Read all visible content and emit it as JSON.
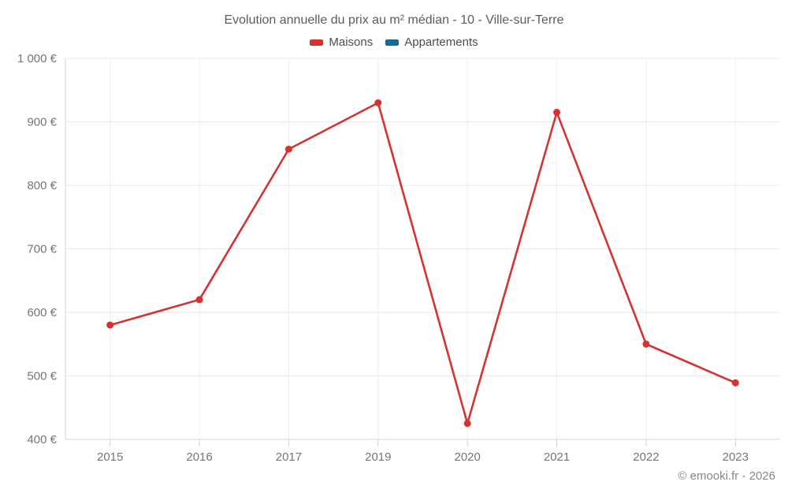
{
  "title": "Evolution annuelle du prix au m² médian - 10 - Ville-sur-Terre",
  "footer": "© emooki.fr - 2026",
  "legend": {
    "items": [
      {
        "label": "Maisons",
        "color": "#d4342f"
      },
      {
        "label": "Appartements",
        "color": "#17689c"
      }
    ]
  },
  "chart_data": {
    "type": "line",
    "title": "Evolution annuelle du prix au m² médian - 10 - Ville-sur-Terre",
    "categories": [
      "2015",
      "2016",
      "2017",
      "2019",
      "2020",
      "2021",
      "2022",
      "2023"
    ],
    "series": [
      {
        "name": "Maisons",
        "color": "#d4342f",
        "values": [
          580,
          620,
          857,
          930,
          425,
          915,
          550,
          489
        ]
      },
      {
        "name": "Appartements",
        "color": "#17689c",
        "values": []
      }
    ],
    "xlabel": "",
    "ylabel": "",
    "ylim": [
      400,
      1000
    ],
    "ytick_step": 100,
    "ytick_labels": [
      "400 €",
      "500 €",
      "600 €",
      "700 €",
      "800 €",
      "900 €",
      "1 000 €"
    ],
    "grid": true,
    "legend_position": "top",
    "currency": "€"
  }
}
